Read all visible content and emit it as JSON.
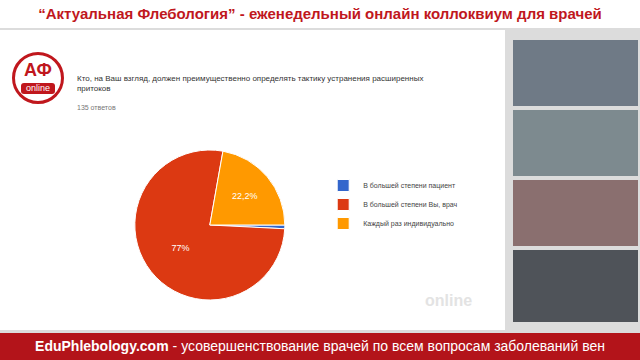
{
  "header": "“Актуальная Флебология” - еженедельный онлайн коллоквиум для врачей",
  "footer": {
    "site": "EduPhlebology.com",
    "text": "- усовершенствование врачей по всем вопросам заболеваний вен"
  },
  "logo": {
    "text": "АФ",
    "sub": "online"
  },
  "watermark": "online",
  "chart_data": {
    "type": "pie",
    "title": "Кто, на Ваш взгляд, должен преимущественно определять тактику устранения расширенных притоков",
    "subtitle": "135 ответов",
    "categories": [
      "В большей степени пациент",
      "В большей степени Вы, врач",
      "Каждый раз индивидуально"
    ],
    "values": [
      0.8,
      77,
      22.2
    ],
    "value_labels": [
      null,
      "77%",
      "22,2%"
    ],
    "colors": [
      "#3366cc",
      "#dc3912",
      "#ff9900"
    ],
    "legend": "right",
    "data_labels": true
  }
}
